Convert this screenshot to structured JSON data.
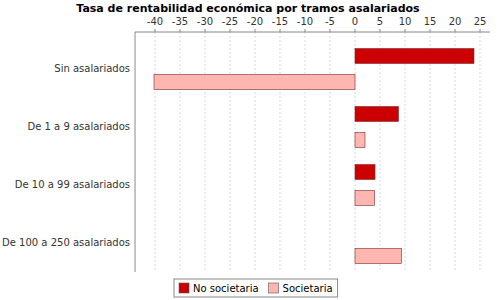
{
  "chart_data": {
    "type": "bar",
    "orientation": "horizontal",
    "title": "Tasa de rentabilidad económica por tramos asalariados",
    "categories": [
      "Sin asalariados",
      "De 1 a 9 asalariados",
      "De 10 a 99 asalariados",
      "De 100 a 250 asalariados"
    ],
    "series": [
      {
        "name": "No societaria",
        "color": "#cc0000",
        "values": [
          23.8,
          8.7,
          4.0,
          null
        ]
      },
      {
        "name": "Societaria",
        "color": "#ffb6b0",
        "values": [
          -40.2,
          2.0,
          3.9,
          9.3
        ]
      }
    ],
    "xlim": [
      -44,
      27
    ],
    "xticks": [
      -40,
      -35,
      -30,
      -25,
      -20,
      -15,
      -10,
      -5,
      0,
      5,
      10,
      15,
      20,
      25
    ],
    "grid": true,
    "legend": "bottom"
  }
}
